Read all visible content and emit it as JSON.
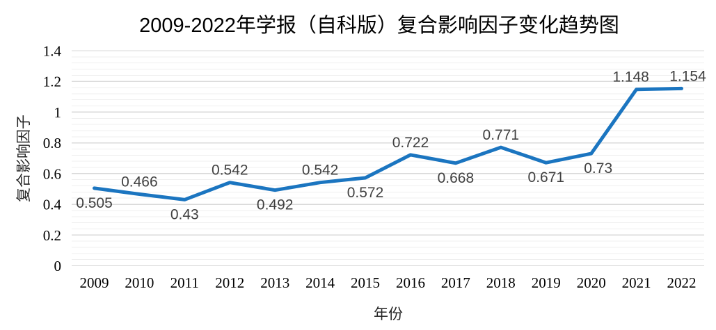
{
  "chart_data": {
    "type": "line",
    "title": "2009-2022年学报（自科版）复合影响因子变化趋势图",
    "xlabel": "年份",
    "ylabel": "复合影响因子",
    "categories": [
      "2009",
      "2010",
      "2011",
      "2012",
      "2013",
      "2014",
      "2015",
      "2016",
      "2017",
      "2018",
      "2019",
      "2020",
      "2021",
      "2022"
    ],
    "values": [
      0.505,
      0.466,
      0.43,
      0.542,
      0.492,
      0.542,
      0.572,
      0.722,
      0.668,
      0.771,
      0.671,
      0.73,
      1.148,
      1.154
    ],
    "data_labels": [
      "0.505",
      "0.466",
      "0.43",
      "0.542",
      "0.492",
      "0.542",
      "0.572",
      "0.722",
      "0.668",
      "0.771",
      "0.671",
      "0.73",
      "1.148",
      "1.154"
    ],
    "label_placement": [
      "below",
      "above",
      "below",
      "above",
      "below",
      "above",
      "below",
      "above",
      "below",
      "above",
      "below",
      "below",
      "above",
      "above"
    ],
    "label_dx": [
      0,
      0,
      0,
      0,
      0,
      0,
      0,
      0,
      0,
      0,
      0,
      10,
      -8,
      9
    ],
    "y_major_ticks": [
      "0",
      "0.2",
      "0.4",
      "0.6",
      "0.8",
      "1",
      "1.2",
      "1.4"
    ],
    "ylim": [
      0,
      1.4
    ],
    "y_major_unit": 0.2,
    "y_minor_unit": 0.04,
    "grid": "horizontal major + minor",
    "legend": "none",
    "colors": {
      "line": "#1B75C0",
      "data_label": "#404040",
      "tick_label": "#000000",
      "major_grid": "#D9D9D9",
      "minor_grid": "#EFEFEF"
    }
  }
}
